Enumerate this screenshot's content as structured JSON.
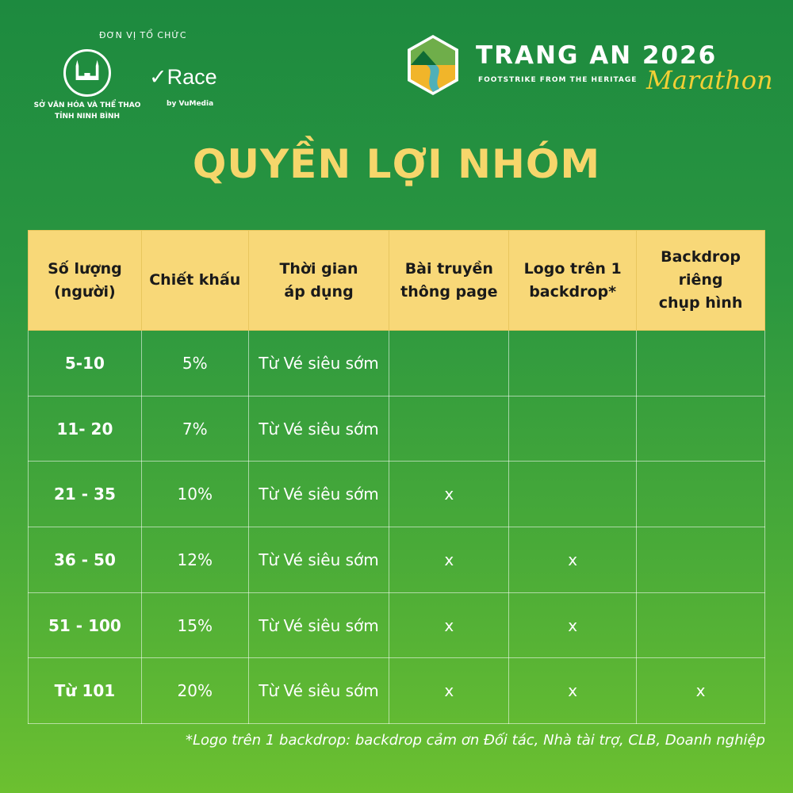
{
  "organizer": {
    "label": "ĐƠN VỊ TỔ CHỨC",
    "dept_line1": "SỞ VĂN HÓA VÀ THỂ THAO",
    "dept_line2": "TỈNH NINH BÌNH",
    "seal_text": "NINH BÌNH",
    "vrace": "Race",
    "vrace_by": "by VuMedia"
  },
  "event": {
    "title": "TRANG AN 2026",
    "tagline": "FOOTSTRIKE FROM THE HERITAGE",
    "script": "Marathon"
  },
  "page_title": "QUYỀN LỢI NHÓM",
  "colors": {
    "header_bg": "#f8d878",
    "title": "#f6d66b",
    "bg_top": "#1d8a3f",
    "bg_bottom": "#6cc030"
  },
  "table": {
    "headers": [
      [
        "Số lượng",
        "(người)"
      ],
      [
        "Chiết khấu"
      ],
      [
        "Thời gian",
        "áp dụng"
      ],
      [
        "Bài truyền",
        "thông page"
      ],
      [
        "Logo  trên 1",
        "backdrop*"
      ],
      [
        "Backdrop riêng",
        "chụp hình"
      ]
    ],
    "rows": [
      [
        "5-10",
        "5%",
        "Từ Vé siêu sớm",
        "",
        "",
        ""
      ],
      [
        "11- 20",
        "7%",
        "Từ Vé siêu sớm",
        "",
        "",
        ""
      ],
      [
        "21 - 35",
        "10%",
        "Từ Vé siêu sớm",
        "x",
        "",
        ""
      ],
      [
        "36 - 50",
        "12%",
        "Từ Vé siêu sớm",
        "x",
        "x",
        ""
      ],
      [
        "51 - 100",
        "15%",
        "Từ Vé siêu sớm",
        "x",
        "x",
        ""
      ],
      [
        "Từ 101",
        "20%",
        "Từ Vé siêu sớm",
        "x",
        "x",
        "x"
      ]
    ]
  },
  "footnote": "*Logo trên 1 backdrop: backdrop cảm ơn Đối tác, Nhà tài trợ, CLB, Doanh nghiệp"
}
